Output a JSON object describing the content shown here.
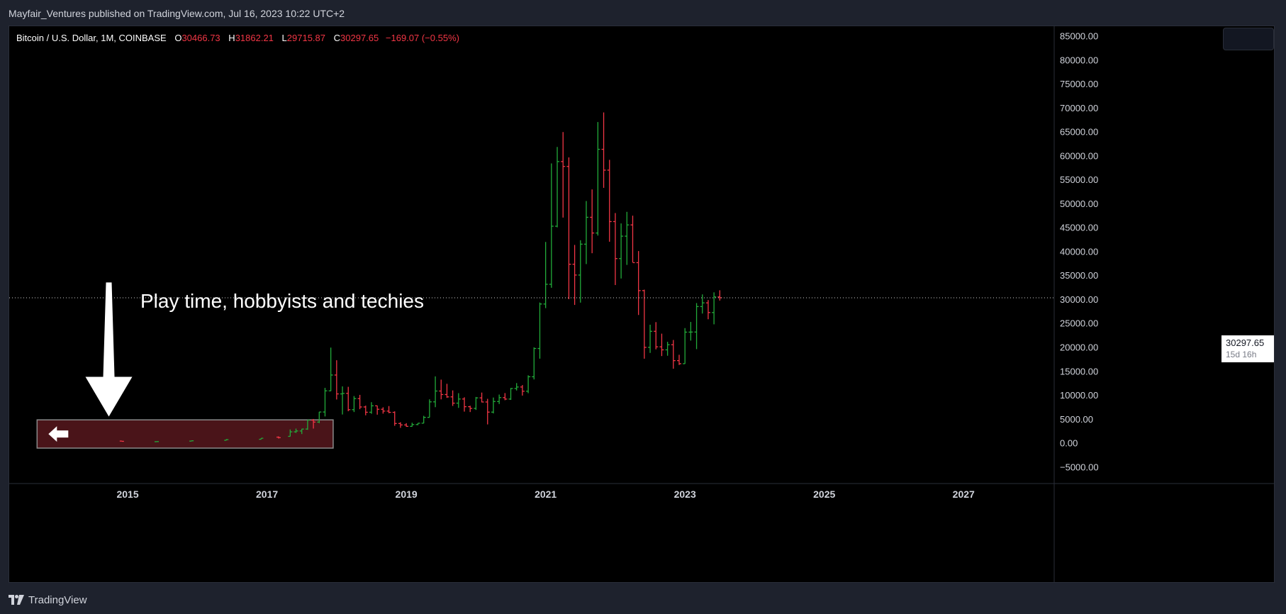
{
  "header": {
    "published_by": "Mayfair_Ventures published on TradingView.com, Jul 16, 2023 10:22 UTC+2"
  },
  "legend": {
    "symbol": "Bitcoin / U.S. Dollar, 1M, COINBASE",
    "open_label": "O",
    "open": "30466.73",
    "high_label": "H",
    "high": "31862.21",
    "low_label": "L",
    "low": "29715.87",
    "close_label": "C",
    "close": "30297.65",
    "change": "−169.07 (−0.55%)"
  },
  "price_tag": {
    "price": "30297.65",
    "countdown": "15d 16h"
  },
  "annotation": {
    "text": "Play time, hobbyists and techies"
  },
  "footer": {
    "brand": "TradingView"
  },
  "colors": {
    "up": "#26a69a",
    "up_bright": "#22ab3a",
    "down": "#f23645",
    "background": "#000000",
    "panel": "#1e222d",
    "zone_fill": "#4a1419"
  },
  "chart_data": {
    "type": "ohlc",
    "title": "Bitcoin / U.S. Dollar, 1M, COINBASE",
    "ylim": [
      -8500,
      87000
    ],
    "xlim": [
      2013.3,
      2028.3
    ],
    "y_ticks": [
      "85000.00",
      "80000.00",
      "75000.00",
      "70000.00",
      "65000.00",
      "60000.00",
      "55000.00",
      "50000.00",
      "45000.00",
      "40000.00",
      "35000.00",
      "30000.00",
      "25000.00",
      "20000.00",
      "15000.00",
      "10000.00",
      "5000.00",
      "0.00",
      "−5000.00"
    ],
    "x_ticks": [
      "2015",
      "2017",
      "2019",
      "2021",
      "2023",
      "2025",
      "2027"
    ],
    "last_price": 30297.65,
    "zone": {
      "x_start": 2013.7,
      "x_end": 2017.95,
      "y_low": -1100,
      "y_high": 4800
    },
    "arrow": {
      "x": 2014.73,
      "y_from": 33500,
      "y_to": 5500
    },
    "monthly": [
      [
        "2014-12",
        370,
        400,
        300,
        320
      ],
      [
        "2015-06",
        240,
        280,
        220,
        260
      ],
      [
        "2015-12",
        360,
        470,
        340,
        430
      ],
      [
        "2016-06",
        530,
        780,
        520,
        670
      ],
      [
        "2016-12",
        740,
        980,
        730,
        960
      ],
      [
        "2017-03",
        1190,
        1350,
        900,
        1080
      ],
      [
        "2017-05",
        1350,
        2790,
        1330,
        2300
      ],
      [
        "2017-06",
        2300,
        2980,
        2070,
        2480
      ],
      [
        "2017-07",
        2480,
        2920,
        1840,
        2880
      ],
      [
        "2017-08",
        2880,
        4770,
        2720,
        4740
      ],
      [
        "2017-09",
        4740,
        4980,
        2980,
        4340
      ],
      [
        "2017-10",
        4340,
        6470,
        4110,
        6440
      ],
      [
        "2017-11",
        6440,
        11480,
        5510,
        10860
      ],
      [
        "2017-12",
        10860,
        19890,
        10800,
        14160
      ],
      [
        "2018-01",
        14160,
        17250,
        9050,
        10220
      ],
      [
        "2018-02",
        10220,
        11790,
        5920,
        10330
      ],
      [
        "2018-03",
        10330,
        11700,
        6600,
        6930
      ],
      [
        "2018-04",
        6930,
        9770,
        6430,
        9240
      ],
      [
        "2018-05",
        9240,
        10020,
        7030,
        7490
      ],
      [
        "2018-06",
        7490,
        7770,
        5750,
        6390
      ],
      [
        "2018-07",
        6390,
        8490,
        6070,
        7730
      ],
      [
        "2018-08",
        7730,
        7760,
        5880,
        7010
      ],
      [
        "2018-09",
        7010,
        7420,
        6100,
        6630
      ],
      [
        "2018-10",
        6630,
        7680,
        6200,
        6370
      ],
      [
        "2018-11",
        6370,
        6580,
        3560,
        4040
      ],
      [
        "2018-12",
        4040,
        4300,
        3130,
        3740
      ],
      [
        "2019-01",
        3740,
        4110,
        3350,
        3440
      ],
      [
        "2019-02",
        3440,
        4200,
        3400,
        3820
      ],
      [
        "2019-03",
        3820,
        4110,
        3690,
        4100
      ],
      [
        "2019-04",
        4100,
        5640,
        4080,
        5320
      ],
      [
        "2019-05",
        5320,
        9090,
        5320,
        8560
      ],
      [
        "2019-06",
        8560,
        13880,
        7450,
        10820
      ],
      [
        "2019-07",
        10820,
        13200,
        9080,
        10090
      ],
      [
        "2019-08",
        10090,
        12330,
        9390,
        9600
      ],
      [
        "2019-09",
        9600,
        10950,
        7710,
        8290
      ],
      [
        "2019-10",
        8290,
        10370,
        7300,
        9150
      ],
      [
        "2019-11",
        9150,
        9510,
        6520,
        7550
      ],
      [
        "2019-12",
        7550,
        7750,
        6430,
        7190
      ],
      [
        "2020-01",
        7190,
        9580,
        6870,
        9390
      ],
      [
        "2020-02",
        9390,
        10500,
        8450,
        8530
      ],
      [
        "2020-03",
        8530,
        9190,
        3850,
        6420
      ],
      [
        "2020-04",
        6420,
        9460,
        6150,
        8630
      ],
      [
        "2020-05",
        8630,
        10080,
        8110,
        9450
      ],
      [
        "2020-06",
        9450,
        10390,
        8910,
        9140
      ],
      [
        "2020-07",
        9140,
        11450,
        8970,
        11350
      ],
      [
        "2020-08",
        11350,
        12480,
        10930,
        11660
      ],
      [
        "2020-09",
        11660,
        12070,
        9870,
        10780
      ],
      [
        "2020-10",
        10780,
        14100,
        10370,
        13800
      ],
      [
        "2020-11",
        13800,
        19940,
        13240,
        19700
      ],
      [
        "2020-12",
        19700,
        29300,
        17580,
        28990
      ],
      [
        "2021-01",
        28990,
        41950,
        28130,
        33110
      ],
      [
        "2021-02",
        33110,
        58350,
        32380,
        45240
      ],
      [
        "2021-03",
        45240,
        61790,
        45000,
        58740
      ],
      [
        "2021-04",
        58740,
        64900,
        47040,
        57720
      ],
      [
        "2021-05",
        57720,
        59600,
        30000,
        37300
      ],
      [
        "2021-06",
        37300,
        41330,
        28800,
        35040
      ],
      [
        "2021-07",
        35040,
        42310,
        29280,
        41490
      ],
      [
        "2021-08",
        41490,
        50500,
        37330,
        47100
      ],
      [
        "2021-09",
        47100,
        52920,
        39600,
        43820
      ],
      [
        "2021-10",
        43820,
        67000,
        43290,
        61300
      ],
      [
        "2021-11",
        61300,
        69000,
        53250,
        56950
      ],
      [
        "2021-12",
        56950,
        59100,
        42000,
        46210
      ],
      [
        "2022-01",
        46210,
        47990,
        32950,
        38480
      ],
      [
        "2022-02",
        38480,
        45820,
        34320,
        43160
      ],
      [
        "2022-03",
        43160,
        48240,
        37160,
        45510
      ],
      [
        "2022-04",
        45510,
        47440,
        37700,
        37630
      ],
      [
        "2022-05",
        37630,
        40050,
        26700,
        31790
      ],
      [
        "2022-06",
        31790,
        31990,
        17570,
        19940
      ],
      [
        "2022-07",
        19940,
        24670,
        18780,
        23290
      ],
      [
        "2022-08",
        23290,
        25210,
        19520,
        20050
      ],
      [
        "2022-09",
        20050,
        22800,
        18120,
        19420
      ],
      [
        "2022-10",
        19420,
        21100,
        18190,
        20490
      ],
      [
        "2022-11",
        20490,
        21480,
        15480,
        17170
      ],
      [
        "2022-12",
        17170,
        18390,
        16260,
        16530
      ],
      [
        "2023-01",
        16530,
        23960,
        16500,
        23120
      ],
      [
        "2023-02",
        23120,
        25250,
        21350,
        23140
      ],
      [
        "2023-03",
        23140,
        29190,
        19570,
        28460
      ],
      [
        "2023-04",
        28460,
        31000,
        27000,
        29230
      ],
      [
        "2023-05",
        29230,
        29820,
        25810,
        27210
      ],
      [
        "2023-06",
        27210,
        31430,
        24750,
        30470
      ],
      [
        "2023-07",
        30466.73,
        31862.21,
        29715.87,
        30297.65
      ]
    ]
  }
}
